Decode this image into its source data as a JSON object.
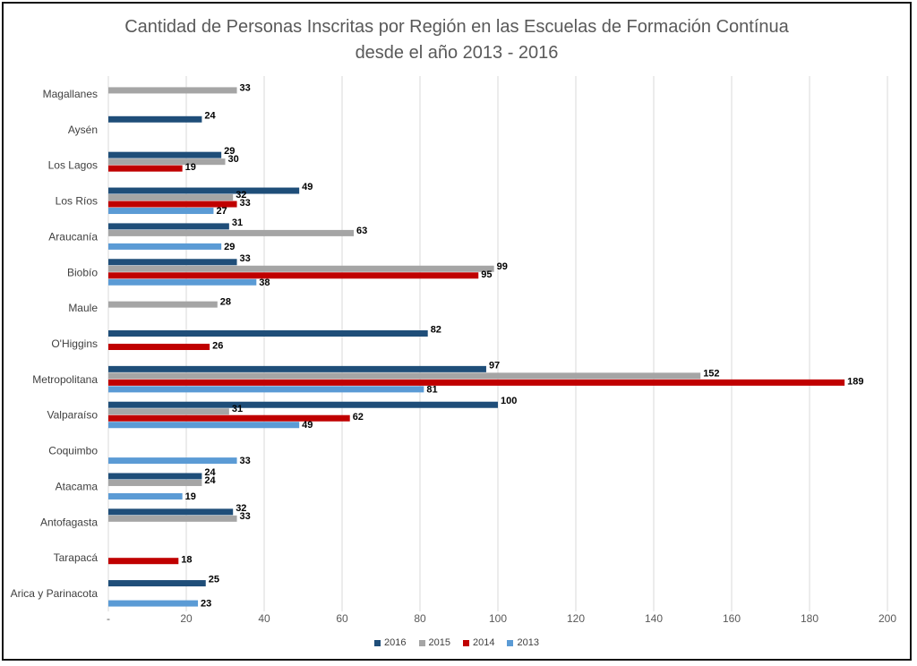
{
  "chart_data": {
    "type": "bar",
    "orientation": "horizontal",
    "title": "Cantidad de Personas Inscritas por Región en las Escuelas de Formación Contínua desde el año 2013 - 2016",
    "title_lines": [
      "Cantidad de Personas Inscritas por Región en las Escuelas de Formación Contínua",
      "desde el año 2013 - 2016"
    ],
    "categories": [
      "Magallanes",
      "Aysén",
      "Los Lagos",
      "Los Ríos",
      "Araucanía",
      "Biobío",
      "Maule",
      "O'Higgins",
      "Metropolitana",
      "Valparaíso",
      "Coquimbo",
      "Atacama",
      "Antofagasta",
      "Tarapacá",
      "Arica y Parinacota"
    ],
    "series": [
      {
        "name": "2016",
        "color": "#1F4E79",
        "values": [
          null,
          24,
          29,
          49,
          31,
          33,
          null,
          82,
          97,
          100,
          null,
          24,
          32,
          null,
          25
        ]
      },
      {
        "name": "2015",
        "color": "#A5A5A5",
        "values": [
          33,
          null,
          30,
          32,
          63,
          99,
          28,
          null,
          152,
          31,
          null,
          24,
          33,
          null,
          null
        ]
      },
      {
        "name": "2014",
        "color": "#C00000",
        "values": [
          null,
          null,
          19,
          33,
          null,
          95,
          null,
          26,
          189,
          62,
          null,
          null,
          null,
          18,
          null
        ]
      },
      {
        "name": "2013",
        "color": "#5B9BD5",
        "values": [
          null,
          null,
          null,
          27,
          29,
          38,
          null,
          null,
          81,
          49,
          33,
          19,
          null,
          null,
          23
        ]
      }
    ],
    "x_ticks": [
      "-",
      "20",
      "40",
      "60",
      "80",
      "100",
      "120",
      "140",
      "160",
      "180",
      "200"
    ],
    "xlim": [
      0,
      200
    ],
    "grid": true,
    "legend_position": "bottom"
  }
}
